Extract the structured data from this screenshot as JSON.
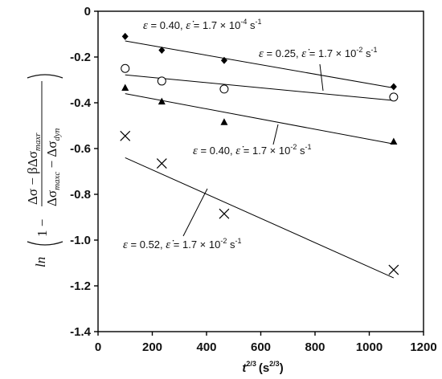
{
  "chart_data": {
    "type": "scatter",
    "x_axis": {
      "range": [
        0,
        1200
      ],
      "ticks": [
        0,
        200,
        400,
        600,
        800,
        1000,
        1200
      ],
      "tick_labels": [
        "0",
        "200",
        "400",
        "600",
        "800",
        "1000",
        "1200"
      ],
      "label_base": "t",
      "label_exp": "2/3",
      "label_unit_base": "(s",
      "label_unit_exp": "2/3",
      "label_unit_close": ")"
    },
    "y_axis": {
      "range": [
        -1.4,
        0
      ],
      "ticks": [
        0,
        -0.2,
        -0.4,
        -0.6,
        -0.8,
        -1.0,
        -1.2,
        -1.4
      ],
      "tick_labels": [
        "0",
        "-0.2",
        "-0.4",
        "-0.6",
        "-0.8",
        "-1.0",
        "-1.2",
        "-1.4"
      ],
      "label": {
        "fn": "ln",
        "one_minus": "1 −",
        "numerator": "Δσ − βΔσ",
        "numerator_sub": "maxr",
        "denom_1": "Δσ",
        "denom_1_sub": "maxc",
        "denom_minus": " − Δσ",
        "denom_2_sub": "dyn"
      }
    },
    "grid": false,
    "legend": "none",
    "series": [
      {
        "marker": "diamond",
        "points": [
          [
            100,
            -0.11
          ],
          [
            235,
            -0.17
          ],
          [
            465,
            -0.215
          ],
          [
            1090,
            -0.33
          ]
        ],
        "fit": [
          [
            100,
            -0.13
          ],
          [
            1090,
            -0.335
          ]
        ],
        "label": {
          "eps": "0.40",
          "rate_mant": "1.7 × 10",
          "rate_exp": "-4",
          "unit": "s",
          "unit_exp": "-1"
        }
      },
      {
        "marker": "circle",
        "points": [
          [
            100,
            -0.25
          ],
          [
            235,
            -0.305
          ],
          [
            465,
            -0.34
          ],
          [
            1090,
            -0.375
          ]
        ],
        "fit": [
          [
            100,
            -0.278
          ],
          [
            1090,
            -0.39
          ]
        ],
        "label": {
          "eps": "0.25",
          "rate_mant": "1.7 × 10",
          "rate_exp": "-2",
          "unit": "s",
          "unit_exp": "-1"
        }
      },
      {
        "marker": "triangle",
        "points": [
          [
            100,
            -0.335
          ],
          [
            235,
            -0.395
          ],
          [
            465,
            -0.485
          ],
          [
            1090,
            -0.57
          ]
        ],
        "fit": [
          [
            100,
            -0.36
          ],
          [
            1090,
            -0.58
          ]
        ],
        "label": {
          "eps": "0.40",
          "rate_mant": "1.7 × 10",
          "rate_exp": "-2",
          "unit": "s",
          "unit_exp": "-1"
        }
      },
      {
        "marker": "x",
        "points": [
          [
            100,
            -0.545
          ],
          [
            235,
            -0.665
          ],
          [
            465,
            -0.885
          ],
          [
            1090,
            -1.13
          ]
        ],
        "fit": [
          [
            100,
            -0.64
          ],
          [
            1090,
            -1.165
          ]
        ],
        "label": {
          "eps": "0.52",
          "rate_mant": "1.7 × 10",
          "rate_exp": "-2",
          "unit": "s",
          "unit_exp": "-1"
        }
      }
    ]
  }
}
